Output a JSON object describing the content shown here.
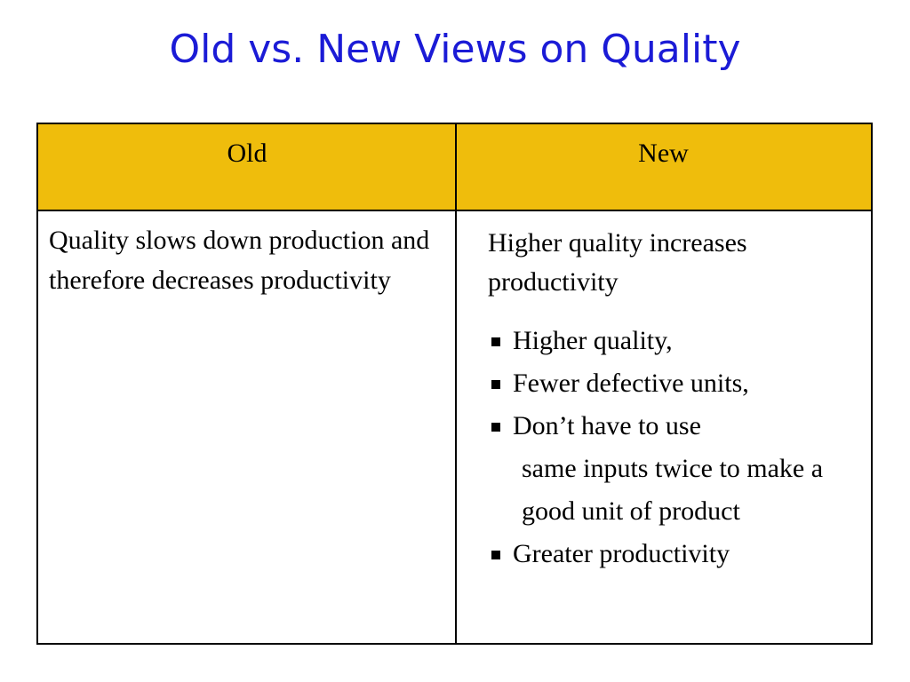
{
  "title": "Old vs. New Views on Quality",
  "table": {
    "headers": [
      "Old",
      "New"
    ],
    "old_text": "Quality slows down production and therefore decreases productivity",
    "new_lead": "Higher quality increases productivity",
    "new_bullets": [
      {
        "line1": "Higher quality,",
        "cont": ""
      },
      {
        "line1": "Fewer defective units,",
        "cont": ""
      },
      {
        "line1": "Don’t have to use",
        "cont": "same inputs twice to make a good unit of product"
      },
      {
        "line1": "Greater productivity",
        "cont": ""
      }
    ]
  },
  "colors": {
    "title": "#1b1bd6",
    "header_bg": "#efbd0c"
  }
}
